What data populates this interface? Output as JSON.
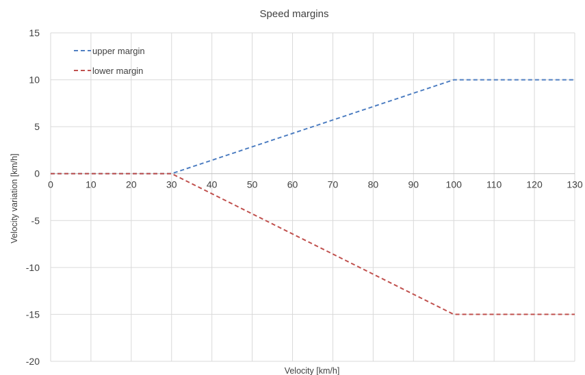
{
  "chart_data": {
    "type": "line",
    "title": "Speed margins",
    "xlabel": "Velocity [km/h]",
    "ylabel": "Velocity variation [km/h]",
    "xlim": [
      0,
      130
    ],
    "ylim": [
      -20,
      15
    ],
    "xticks": [
      0,
      10,
      20,
      30,
      40,
      50,
      60,
      70,
      80,
      90,
      100,
      110,
      120,
      130
    ],
    "yticks": [
      15,
      10,
      5,
      0,
      -5,
      -10,
      -15,
      -20
    ],
    "grid": true,
    "legend_position": "top-left",
    "series": [
      {
        "name": "upper margin",
        "color": "#4f7fc2",
        "style": "dashed",
        "x": [
          0,
          30,
          100,
          130
        ],
        "y": [
          0,
          0,
          10,
          10
        ]
      },
      {
        "name": "lower margin",
        "color": "#c0504d",
        "style": "dashed",
        "x": [
          0,
          30,
          100,
          130
        ],
        "y": [
          0,
          0,
          -15,
          -15
        ]
      }
    ]
  }
}
